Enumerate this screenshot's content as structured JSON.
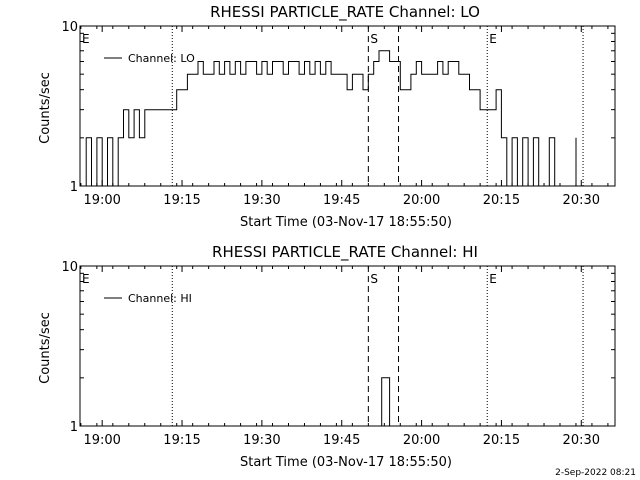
{
  "chart_data": [
    {
      "type": "line",
      "title": "RHESSI PARTICLE_RATE Channel: LO",
      "xlabel": "Start Time (03-Nov-17 18:55:50)",
      "ylabel": "Counts/sec",
      "yscale": "log",
      "ylim": [
        1,
        10
      ],
      "yticks": [
        {
          "value": 1,
          "label": "1"
        },
        {
          "value": 10,
          "label": "10"
        }
      ],
      "xlim": [
        "18:55:50",
        "20:36:20"
      ],
      "xticks": [
        "19:00",
        "19:15",
        "19:30",
        "19:45",
        "20:00",
        "20:15",
        "20:30"
      ],
      "legend": {
        "label": "Channel: LO",
        "placement": "top-left"
      },
      "markers": [
        {
          "label": "E",
          "time": "18:55:50",
          "style": "dotted"
        },
        {
          "label": "",
          "time": "19:13:10",
          "style": "dotted"
        },
        {
          "label": "S",
          "time": "19:50:00",
          "style": "dashed"
        },
        {
          "label": "",
          "time": "19:55:40",
          "style": "dashed"
        },
        {
          "label": "E",
          "time": "20:12:20",
          "style": "dotted"
        },
        {
          "label": "",
          "time": "20:30:20",
          "style": "dotted"
        }
      ],
      "series": [
        {
          "name": "Channel: LO",
          "x": [
            "18:56",
            "18:57",
            "18:58",
            "18:59",
            "19:00",
            "19:01",
            "19:02",
            "19:03",
            "19:04",
            "19:05",
            "19:06",
            "19:07",
            "19:08",
            "19:09",
            "19:10",
            "19:11",
            "19:12",
            "19:13",
            "19:14",
            "19:15",
            "19:16",
            "19:17",
            "19:18",
            "19:19",
            "19:20",
            "19:21",
            "19:22",
            "19:23",
            "19:24",
            "19:25",
            "19:26",
            "19:27",
            "19:28",
            "19:29",
            "19:30",
            "19:31",
            "19:32",
            "19:33",
            "19:34",
            "19:35",
            "19:36",
            "19:37",
            "19:38",
            "19:39",
            "19:40",
            "19:41",
            "19:42",
            "19:43",
            "19:44",
            "19:45",
            "19:46",
            "19:47",
            "19:48",
            "19:49",
            "19:50",
            "19:51",
            "19:52",
            "19:53",
            "19:54",
            "19:55",
            "19:56",
            "19:57",
            "19:58",
            "19:59",
            "20:00",
            "20:01",
            "20:02",
            "20:03",
            "20:04",
            "20:05",
            "20:06",
            "20:07",
            "20:08",
            "20:09",
            "20:10",
            "20:11",
            "20:12",
            "20:13",
            "20:14",
            "20:15",
            "20:16",
            "20:17",
            "20:18",
            "20:19",
            "20:20",
            "20:21",
            "20:22",
            "20:23",
            "20:24",
            "20:25",
            "20:26",
            "20:27",
            "20:28",
            "20:29"
          ],
          "values": [
            1,
            2,
            1,
            2,
            1,
            2,
            1,
            2,
            3,
            2,
            3,
            2,
            3,
            3,
            3,
            3,
            3,
            3,
            4,
            4,
            5,
            5,
            6,
            5,
            5,
            6,
            5,
            6,
            5,
            6,
            5,
            6,
            6,
            5,
            6,
            5,
            6,
            6,
            5,
            6,
            6,
            5,
            6,
            5,
            6,
            5,
            6,
            5,
            5,
            5,
            4,
            5,
            5,
            4,
            5,
            6,
            7,
            7,
            6,
            6,
            4,
            4,
            5,
            6,
            5,
            5,
            5,
            6,
            5,
            6,
            6,
            5,
            5,
            4,
            4,
            3,
            3,
            3,
            4,
            2,
            1,
            2,
            1,
            2,
            1,
            2,
            1,
            1,
            2,
            1,
            1,
            1,
            1,
            2
          ]
        }
      ]
    },
    {
      "type": "line",
      "title": "RHESSI PARTICLE_RATE Channel: HI",
      "xlabel": "Start Time (03-Nov-17 18:55:50)",
      "ylabel": "Counts/sec",
      "yscale": "log",
      "ylim": [
        1,
        10
      ],
      "yticks": [
        {
          "value": 1,
          "label": "1"
        },
        {
          "value": 10,
          "label": "10"
        }
      ],
      "xlim": [
        "18:55:50",
        "20:36:20"
      ],
      "xticks": [
        "19:00",
        "19:15",
        "19:30",
        "19:45",
        "20:00",
        "20:15",
        "20:30"
      ],
      "legend": {
        "label": "Channel: HI",
        "placement": "top-left"
      },
      "markers": [
        {
          "label": "E",
          "time": "18:55:50",
          "style": "dotted"
        },
        {
          "label": "",
          "time": "19:13:10",
          "style": "dotted"
        },
        {
          "label": "S",
          "time": "19:50:00",
          "style": "dashed"
        },
        {
          "label": "",
          "time": "19:55:40",
          "style": "dashed"
        },
        {
          "label": "E",
          "time": "20:12:20",
          "style": "dotted"
        },
        {
          "label": "",
          "time": "20:30:20",
          "style": "dotted"
        }
      ],
      "series": [
        {
          "name": "Channel: HI",
          "x": [
            "18:56",
            "19:52:00",
            "19:52:30",
            "19:53:00",
            "19:53:30",
            "19:54:00",
            "20:36"
          ],
          "values": [
            1,
            1,
            2,
            2,
            2,
            1,
            1
          ]
        }
      ]
    }
  ],
  "footer": {
    "timestamp": "2-Sep-2022 08:21"
  },
  "colors": {
    "background": "#ffffff",
    "ink": "#000000"
  }
}
